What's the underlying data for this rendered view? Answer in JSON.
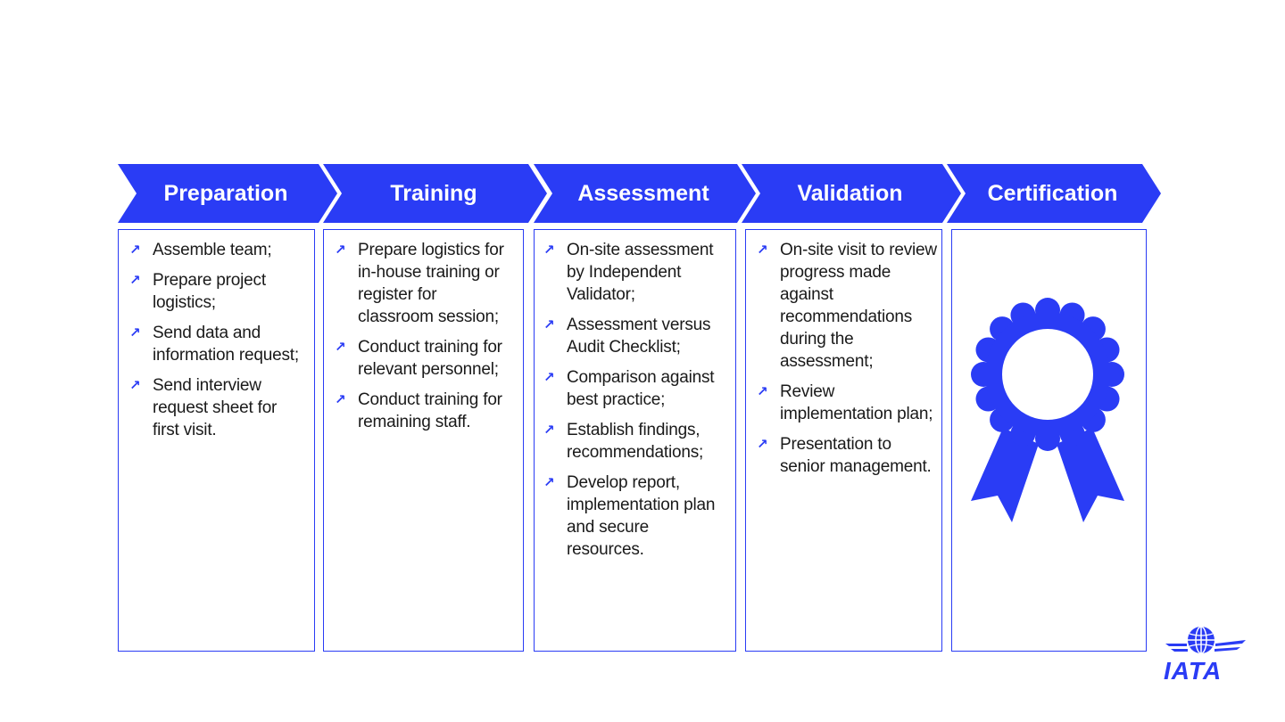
{
  "accent_color": "#2a3cf5",
  "stages": [
    {
      "title": "Preparation",
      "items": [
        "Assemble team;",
        "Prepare project logistics;",
        "Send data and information request;",
        "Send interview request sheet for first visit."
      ]
    },
    {
      "title": "Training",
      "items": [
        "Prepare logistics for in-house training or register for classroom session;",
        "Conduct training for relevant personnel;",
        "Conduct training for remaining staff."
      ]
    },
    {
      "title": "Assessment",
      "items": [
        "On-site assessment by Independent Validator;",
        "Assessment versus Audit Checklist;",
        "Comparison against best practice;",
        "Establish findings, recommendations;",
        "Develop report, implementation plan and secure resources."
      ]
    },
    {
      "title": "Validation",
      "items": [
        "On-site visit to review progress made against recommendations during the assessment;",
        "Review implementation plan;",
        "Presentation to senior management."
      ]
    },
    {
      "title": "Certification",
      "icon": "award-ribbon-icon"
    }
  ],
  "bullet_icon": "arrow-up-right-icon",
  "logo": {
    "text": "IATA",
    "icon": "iata-globe-logo"
  }
}
